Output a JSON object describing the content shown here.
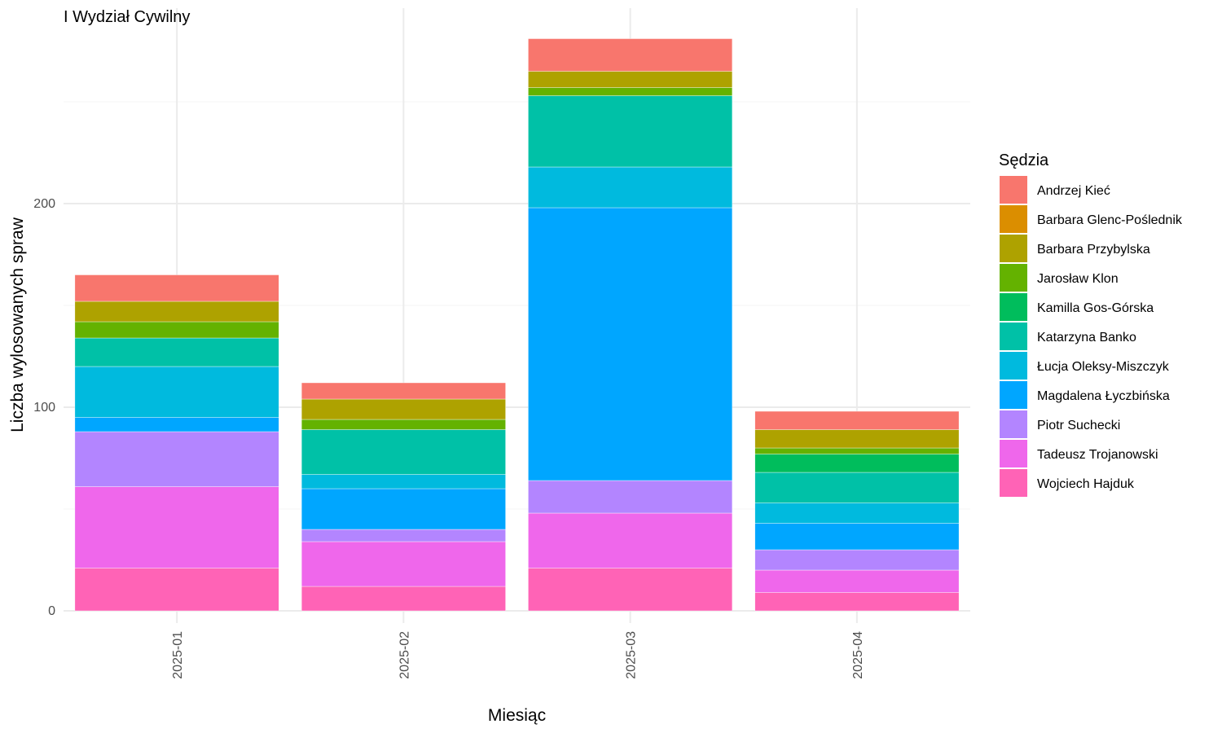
{
  "chart_data": {
    "type": "bar",
    "stacked": true,
    "title": "I Wydział Cywilny",
    "xlabel": "Miesiąc",
    "ylabel": "Liczba wylosowanych spraw",
    "categories": [
      "2025-01",
      "2025-02",
      "2025-03",
      "2025-04"
    ],
    "ylim": [
      0,
      290
    ],
    "yticks": [
      0,
      100,
      200
    ],
    "grid": true,
    "legend_title": "Sędzia",
    "legend_position": "right",
    "series": [
      {
        "name": "Andrzej Kieć",
        "color": "#F8766D",
        "values": [
          13,
          8,
          16,
          9
        ]
      },
      {
        "name": "Barbara Glenc-Poślednik",
        "color": "#DB8E00",
        "values": [
          0,
          0,
          0,
          0
        ]
      },
      {
        "name": "Barbara Przybylska",
        "color": "#AEA200",
        "values": [
          10,
          10,
          8,
          9
        ]
      },
      {
        "name": "Jarosław Klon",
        "color": "#64B200",
        "values": [
          8,
          5,
          4,
          3
        ]
      },
      {
        "name": "Kamilla Gos-Górska",
        "color": "#00BD5C",
        "values": [
          0,
          0,
          0,
          9
        ]
      },
      {
        "name": "Katarzyna Banko",
        "color": "#00C1A7",
        "values": [
          14,
          22,
          35,
          15
        ]
      },
      {
        "name": "Łucja Oleksy-Miszczyk",
        "color": "#00BADE",
        "values": [
          25,
          7,
          20,
          10
        ]
      },
      {
        "name": "Magdalena Łyczbińska",
        "color": "#00A6FF",
        "values": [
          7,
          20,
          134,
          13
        ]
      },
      {
        "name": "Piotr Suchecki",
        "color": "#B385FF",
        "values": [
          27,
          6,
          16,
          10
        ]
      },
      {
        "name": "Tadeusz Trojanowski",
        "color": "#EF67EB",
        "values": [
          40,
          22,
          27,
          11
        ]
      },
      {
        "name": "Wojciech Hajduk",
        "color": "#FF63B6",
        "values": [
          21,
          12,
          21,
          9
        ]
      }
    ]
  }
}
